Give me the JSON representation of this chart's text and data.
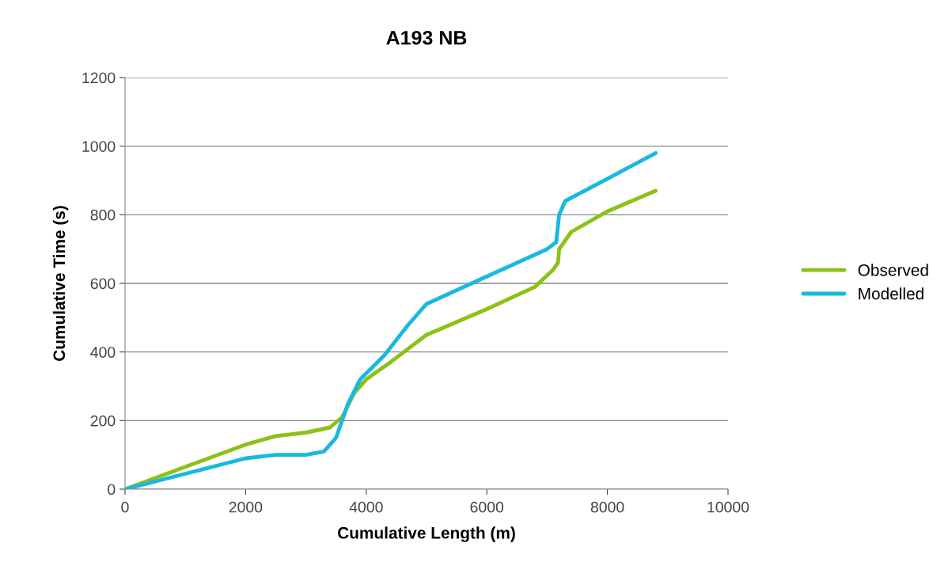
{
  "chart_data": {
    "type": "line",
    "title": "A193 NB",
    "xlabel": "Cumulative Length (m)",
    "ylabel": "Cumulative Time (s)",
    "xlim": [
      0,
      10000
    ],
    "xticks": [
      0,
      2000,
      4000,
      6000,
      8000,
      10000
    ],
    "ylim": [
      0,
      1200
    ],
    "yticks": [
      0,
      200,
      400,
      600,
      800,
      1000,
      1200
    ],
    "grid": "y",
    "legend": "right",
    "marker": "none",
    "line_style": "solid",
    "series": [
      {
        "name": "Observed",
        "color": "#8cc116",
        "x": [
          0,
          1000,
          2000,
          2500,
          3000,
          3400,
          3600,
          3800,
          4000,
          4400,
          5000,
          6000,
          6800,
          7100,
          7180,
          7200,
          7400,
          8000,
          8800
        ],
        "values": [
          0,
          65,
          130,
          155,
          165,
          180,
          210,
          280,
          320,
          370,
          450,
          525,
          590,
          640,
          660,
          700,
          750,
          810,
          870
        ]
      },
      {
        "name": "Modelled",
        "color": "#1ab8e0",
        "x": [
          0,
          1000,
          2000,
          2500,
          3000,
          3300,
          3500,
          3700,
          3900,
          4300,
          4700,
          5000,
          6000,
          7000,
          7150,
          7200,
          7300,
          8000,
          8800
        ],
        "values": [
          0,
          45,
          90,
          100,
          100,
          110,
          150,
          250,
          320,
          390,
          480,
          540,
          620,
          700,
          720,
          800,
          840,
          905,
          980
        ]
      }
    ]
  }
}
